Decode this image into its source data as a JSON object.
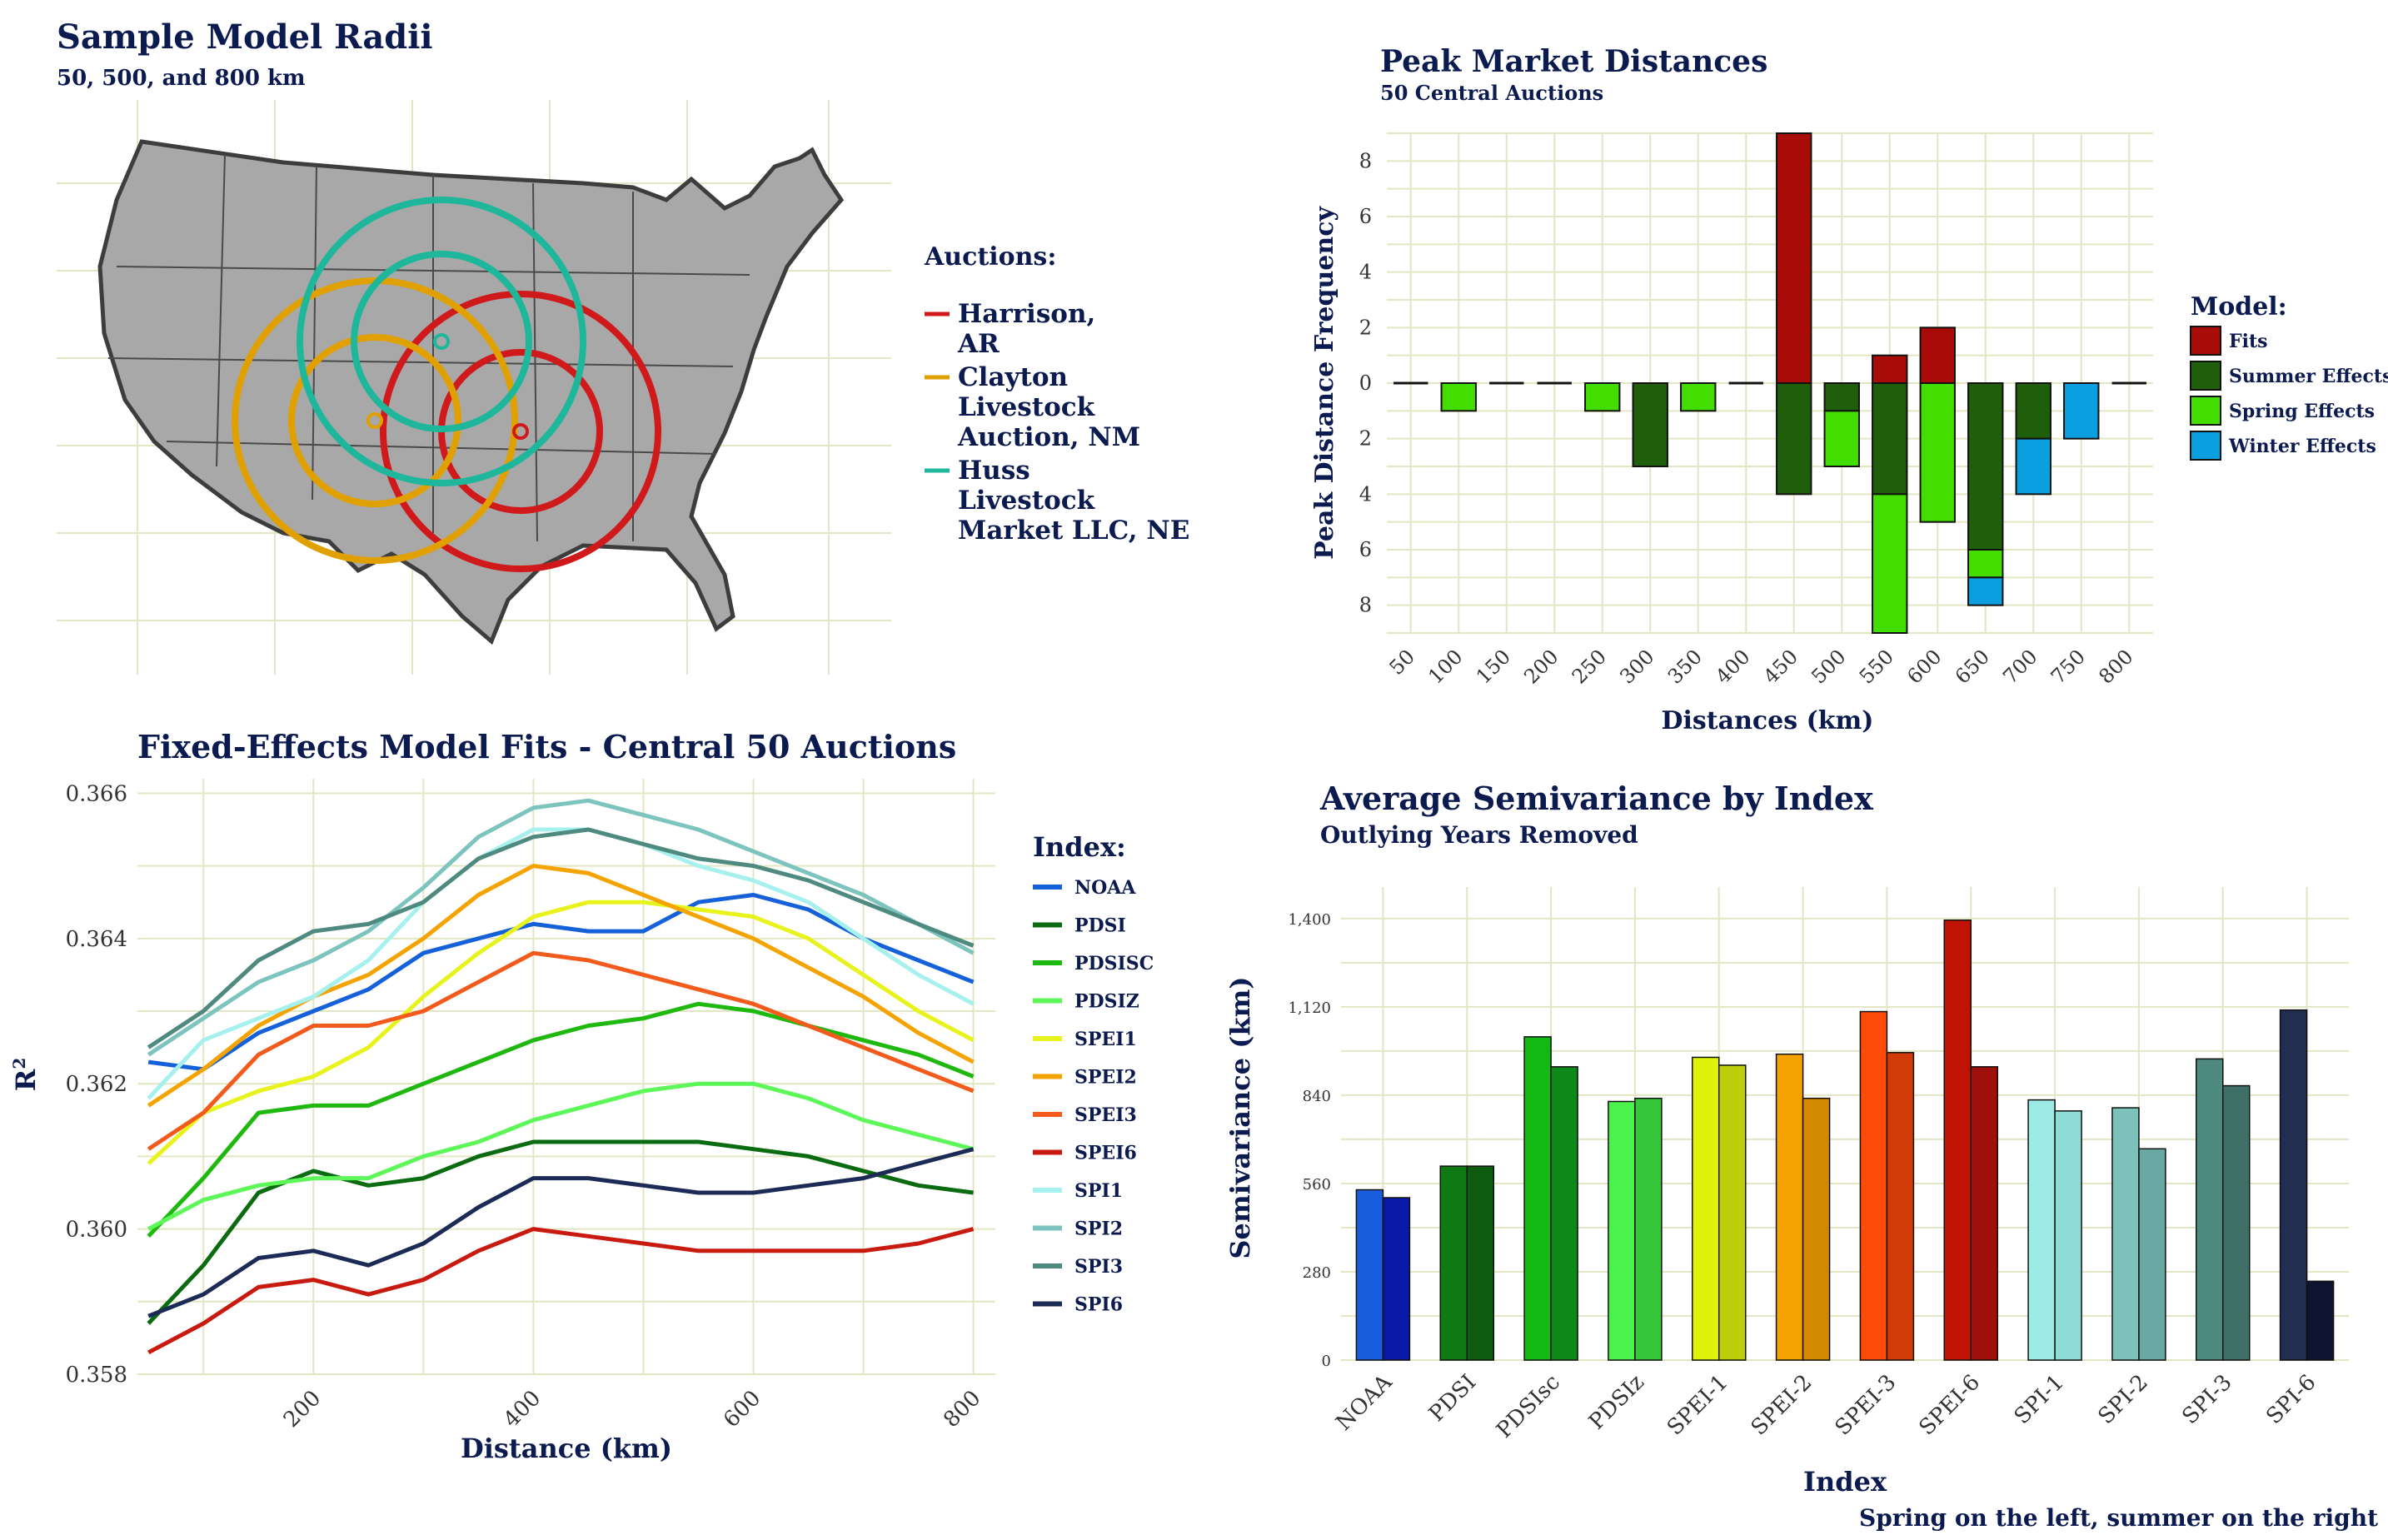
{
  "map_panel": {
    "title": "Sample Model Radii",
    "subtitle": "50, 500, and 800 km",
    "legend_title": "Auctions:",
    "legend_items": [
      {
        "label_lines": [
          "Harrison,",
          "AR"
        ],
        "color": "#d0191b"
      },
      {
        "label_lines": [
          "Clayton",
          "Livestock",
          "Auction, NM"
        ],
        "color": "#e0a000"
      },
      {
        "label_lines": [
          "Huss",
          "Livestock",
          "Market LLC, NE"
        ],
        "color": "#1eb79b"
      }
    ]
  },
  "chart_data": [
    {
      "id": "peak",
      "type": "bar",
      "title": "Peak Market Distances",
      "subtitle": "50 Central Auctions",
      "xlabel": "Distances (km)",
      "ylabel": "Peak Distance Frequency",
      "categories": [
        "50",
        "100",
        "150",
        "200",
        "250",
        "300",
        "350",
        "400",
        "450",
        "500",
        "550",
        "600",
        "650",
        "700",
        "750",
        "800"
      ],
      "ylim": [
        -9,
        9
      ],
      "yticks": [
        8,
        6,
        4,
        2,
        0,
        -2,
        -4,
        -6,
        -8
      ],
      "ytick_labels": [
        "8",
        "6",
        "4",
        "2",
        "0",
        "2",
        "4",
        "6",
        "8"
      ],
      "legend_title": "Model:",
      "series": [
        {
          "name": "Fits",
          "color": "#a80c08",
          "values": [
            0,
            0,
            0,
            0,
            0,
            0,
            0,
            0,
            9,
            0,
            1,
            2,
            0,
            0,
            0,
            0
          ]
        },
        {
          "name": "Summer Effects",
          "color": "#1f5e0a",
          "values": [
            0,
            0,
            0,
            0,
            0,
            -3,
            0,
            0,
            -4,
            -1,
            -4,
            0,
            -6,
            -2,
            0,
            0
          ]
        },
        {
          "name": "Spring Effects",
          "color": "#44dd00",
          "values": [
            0,
            -1,
            0,
            0,
            -1,
            0,
            -1,
            0,
            0,
            -2,
            -5,
            -5,
            -1,
            0,
            0,
            0
          ]
        },
        {
          "name": "Winter Effects",
          "color": "#0aa0e0",
          "values": [
            0,
            0,
            0,
            0,
            0,
            0,
            0,
            0,
            0,
            0,
            0,
            0,
            -1,
            -2,
            -2,
            0
          ]
        }
      ]
    },
    {
      "id": "fits",
      "type": "line",
      "title": "Fixed-Effects Model Fits - Central 50 Auctions",
      "xlabel": "Distance (km)",
      "ylabel": "R",
      "ylabel_sup": "2",
      "xlim": [
        40,
        820
      ],
      "ylim": [
        0.358,
        0.3662
      ],
      "xticks": [
        200,
        400,
        600,
        800
      ],
      "yticks": [
        0.358,
        0.36,
        0.362,
        0.364,
        0.366
      ],
      "ytick_labels": [
        "0.358",
        "0.360",
        "0.362",
        "0.364",
        "0.366"
      ],
      "legend_title": "Index:",
      "x": [
        50,
        100,
        150,
        200,
        250,
        300,
        350,
        400,
        450,
        500,
        550,
        600,
        650,
        700,
        750,
        800
      ],
      "series": [
        {
          "name": "NOAA",
          "color": "#1461d9",
          "values": [
            0.3623,
            0.3622,
            0.3627,
            0.363,
            0.3633,
            0.3638,
            0.364,
            0.3642,
            0.3641,
            0.3641,
            0.3645,
            0.3646,
            0.3644,
            0.364,
            0.3637,
            0.3634
          ]
        },
        {
          "name": "PDSI",
          "color": "#0b6b10",
          "values": [
            0.3587,
            0.3595,
            0.3605,
            0.3608,
            0.3606,
            0.3607,
            0.361,
            0.3612,
            0.3612,
            0.3612,
            0.3612,
            0.3611,
            0.361,
            0.3608,
            0.3606,
            0.3605
          ]
        },
        {
          "name": "PDSISC",
          "color": "#1fb80f",
          "values": [
            0.3599,
            0.3607,
            0.3616,
            0.3617,
            0.3617,
            0.362,
            0.3623,
            0.3626,
            0.3628,
            0.3629,
            0.3631,
            0.363,
            0.3628,
            0.3626,
            0.3624,
            0.3621
          ]
        },
        {
          "name": "PDSIZ",
          "color": "#5ef75a",
          "values": [
            0.36,
            0.3604,
            0.3606,
            0.3607,
            0.3607,
            0.361,
            0.3612,
            0.3615,
            0.3617,
            0.3619,
            0.362,
            0.362,
            0.3618,
            0.3615,
            0.3613,
            0.3611
          ]
        },
        {
          "name": "SPEI1",
          "color": "#e8f21c",
          "values": [
            0.3609,
            0.3616,
            0.3619,
            0.3621,
            0.3625,
            0.3632,
            0.3638,
            0.3643,
            0.3645,
            0.3645,
            0.3644,
            0.3643,
            0.364,
            0.3635,
            0.363,
            0.3626
          ]
        },
        {
          "name": "SPEI2",
          "color": "#f5a300",
          "values": [
            0.3617,
            0.3622,
            0.3628,
            0.3632,
            0.3635,
            0.364,
            0.3646,
            0.365,
            0.3649,
            0.3646,
            0.3643,
            0.364,
            0.3636,
            0.3632,
            0.3627,
            0.3623
          ]
        },
        {
          "name": "SPEI3",
          "color": "#f25b1c",
          "values": [
            0.3611,
            0.3616,
            0.3624,
            0.3628,
            0.3628,
            0.363,
            0.3634,
            0.3638,
            0.3637,
            0.3635,
            0.3633,
            0.3631,
            0.3628,
            0.3625,
            0.3622,
            0.3619
          ]
        },
        {
          "name": "SPEI6",
          "color": "#c81a0e",
          "values": [
            0.3583,
            0.3587,
            0.3592,
            0.3593,
            0.3591,
            0.3593,
            0.3597,
            0.36,
            0.3599,
            0.3598,
            0.3597,
            0.3597,
            0.3597,
            0.3597,
            0.3598,
            0.36
          ]
        },
        {
          "name": "SPI1",
          "color": "#a6f0ee",
          "values": [
            0.3618,
            0.3626,
            0.3629,
            0.3632,
            0.3637,
            0.3645,
            0.3651,
            0.3655,
            0.3655,
            0.3653,
            0.365,
            0.3648,
            0.3645,
            0.364,
            0.3635,
            0.3631
          ]
        },
        {
          "name": "SPI2",
          "color": "#7cc4bd",
          "values": [
            0.3624,
            0.3629,
            0.3634,
            0.3637,
            0.3641,
            0.3647,
            0.3654,
            0.3658,
            0.3659,
            0.3657,
            0.3655,
            0.3652,
            0.3649,
            0.3646,
            0.3642,
            0.3638
          ]
        },
        {
          "name": "SPI3",
          "color": "#4f8a80",
          "values": [
            0.3625,
            0.363,
            0.3637,
            0.3641,
            0.3642,
            0.3645,
            0.3651,
            0.3654,
            0.3655,
            0.3653,
            0.3651,
            0.365,
            0.3648,
            0.3645,
            0.3642,
            0.3639
          ]
        },
        {
          "name": "SPI6",
          "color": "#1c2a56",
          "values": [
            0.3588,
            0.3591,
            0.3596,
            0.3597,
            0.3595,
            0.3598,
            0.3603,
            0.3607,
            0.3607,
            0.3606,
            0.3605,
            0.3605,
            0.3606,
            0.3607,
            0.3609,
            0.3611
          ]
        }
      ]
    },
    {
      "id": "semi",
      "type": "bar",
      "title": "Average Semivariance by Index",
      "subtitle": "Outlying Years Removed",
      "xlabel": "Index",
      "ylabel": "Semivariance (km)",
      "caption": "Spring on the left, summer on the right",
      "ylim": [
        0,
        1500
      ],
      "yticks": [
        0,
        280,
        560,
        840,
        1120,
        1400
      ],
      "ytick_labels": [
        "0",
        "280",
        "560",
        "840",
        "1,120",
        "1,400"
      ],
      "categories": [
        "NOAA",
        "PDSI",
        "PDSIsc",
        "PDSIz",
        "SPEI-1",
        "SPEI-2",
        "SPEI-3",
        "SPEI-6",
        "SPI-1",
        "SPI-2",
        "SPI-3",
        "SPI-6"
      ],
      "series": [
        {
          "name": "Spring",
          "values": [
            540,
            615,
            1025,
            820,
            960,
            970,
            1105,
            1395,
            825,
            800,
            955,
            1110
          ]
        },
        {
          "name": "Summer",
          "values": [
            515,
            615,
            930,
            830,
            935,
            830,
            975,
            930,
            790,
            670,
            870,
            250
          ]
        }
      ],
      "spring_colors": [
        "#1a5ee0",
        "#0f7a13",
        "#13b913",
        "#4cf24c",
        "#dff20c",
        "#f5a300",
        "#ff4a0a",
        "#c01306",
        "#9eeae4",
        "#7cc2bb",
        "#4f8a80",
        "#222d52"
      ],
      "summer_colors": [
        "#0a1aa8",
        "#0d5c0f",
        "#0d8a1a",
        "#36c83a",
        "#bdcf0a",
        "#d48a00",
        "#d13b0a",
        "#9e1009",
        "#8fdcd6",
        "#6aa9a3",
        "#3f7068",
        "#0e1530"
      ]
    }
  ]
}
